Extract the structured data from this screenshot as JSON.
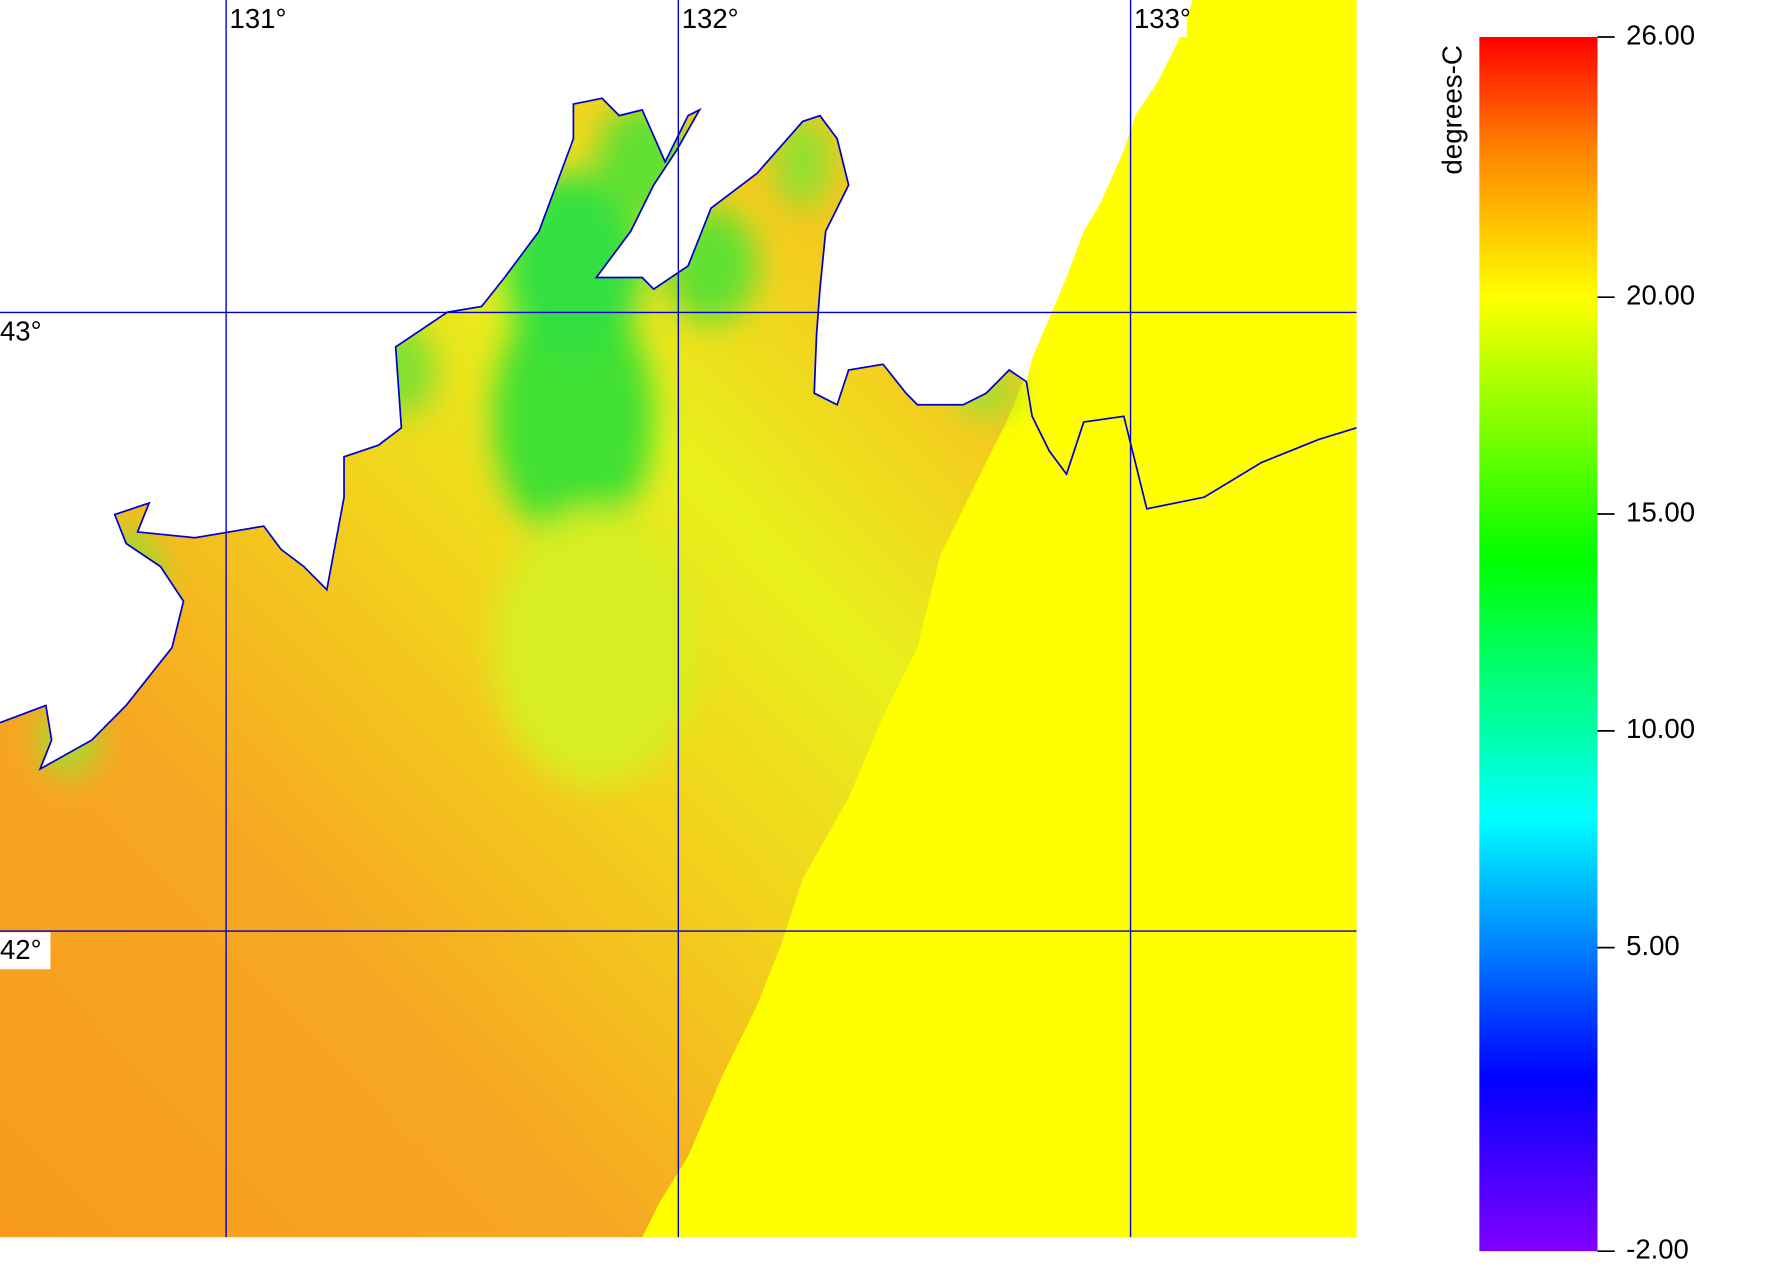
{
  "map": {
    "lon_range": [
      130.5,
      133.5
    ],
    "lat_range": [
      41.505,
      43.505
    ],
    "lon_ticks": [
      {
        "value": 131,
        "label": "131°"
      },
      {
        "value": 132,
        "label": "132°"
      },
      {
        "value": 133,
        "label": "133°"
      }
    ],
    "lat_ticks": [
      {
        "value": 43,
        "label": "43°"
      },
      {
        "value": 42,
        "label": "42°"
      }
    ],
    "colorbar": {
      "label": "degrees-C",
      "range": [
        -2,
        26
      ],
      "ticks": [
        {
          "value": 26,
          "label": "26.00"
        },
        {
          "value": 20,
          "label": "20.00"
        },
        {
          "value": 15,
          "label": "15.00"
        },
        {
          "value": 10,
          "label": "10.00"
        },
        {
          "value": 5,
          "label": "5.00"
        },
        {
          "value": -2,
          "label": "-2.00"
        }
      ]
    }
  }
}
